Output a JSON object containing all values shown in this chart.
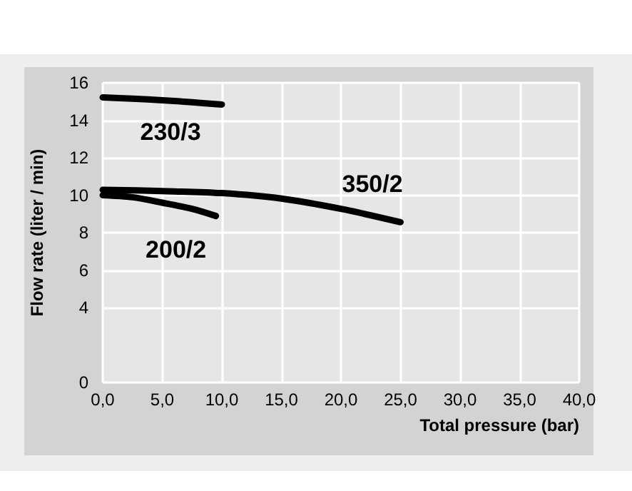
{
  "chart_data": {
    "type": "line",
    "xlabel": "Total pressure (bar)",
    "ylabel": "Flow rate (liter / min)",
    "series": [
      {
        "name": "230/3",
        "color": "#000000",
        "x": [
          0,
          2.5,
          5,
          7.5,
          10
        ],
        "values": [
          15.22,
          15.15,
          15.07,
          14.96,
          14.84
        ]
      },
      {
        "name": "350/2",
        "color": "#000000",
        "x": [
          0,
          5,
          10,
          15,
          20,
          25
        ],
        "values": [
          10.29,
          10.22,
          10.11,
          9.82,
          9.27,
          8.56
        ]
      },
      {
        "name": "200/2",
        "color": "#000000",
        "x": [
          0,
          2.5,
          5,
          7.5,
          9.5
        ],
        "values": [
          10.0,
          9.89,
          9.6,
          9.27,
          8.89
        ]
      }
    ],
    "xlim": [
      0,
      40
    ],
    "xticks": [
      {
        "value": 0,
        "label": "0,0"
      },
      {
        "value": 5,
        "label": "5,0"
      },
      {
        "value": 10,
        "label": "10,0"
      },
      {
        "value": 15,
        "label": "15,0"
      },
      {
        "value": 20,
        "label": "20,0"
      },
      {
        "value": 25,
        "label": "25,0"
      },
      {
        "value": 30,
        "label": "30,0"
      },
      {
        "value": 35,
        "label": "35,0"
      },
      {
        "value": 40,
        "label": "40,0"
      }
    ],
    "ylim": [
      0,
      16
    ],
    "yticks": [
      0,
      4,
      6,
      8,
      10,
      12,
      14,
      16
    ],
    "grid": true,
    "legend": false,
    "marker": "none",
    "line_style": "solid"
  }
}
